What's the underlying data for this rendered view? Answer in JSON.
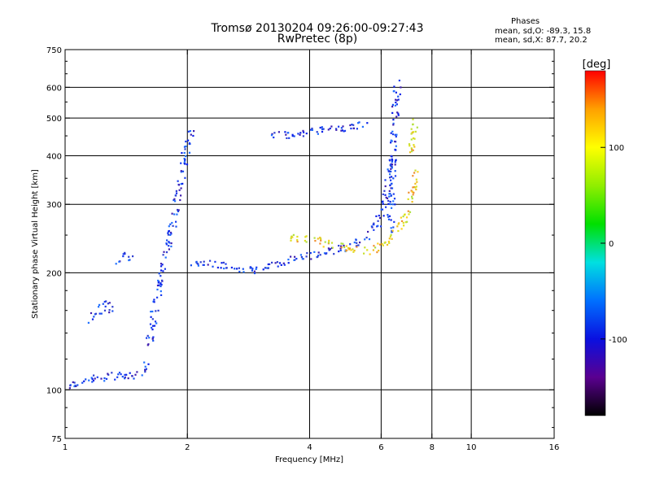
{
  "header": {
    "title": "Tromsø 20130204 09:26:00-09:27:43",
    "subtitle": "RwPretec (8p)"
  },
  "stats": {
    "title": "Phases",
    "line1": "mean, sd,O: -89.3, 15.8",
    "line2": "mean, sd,X:  87.7, 20.2"
  },
  "chart_data": {
    "type": "scatter",
    "title": "Tromsø 20130204 09:26:00-09:27:43",
    "subtitle": "RwPretec (8p)",
    "xlabel": "Frequency [MHz]",
    "ylabel": "Stationary phase Virtual Height [km]",
    "xscale": "log",
    "yscale": "log",
    "xlim": [
      1,
      16
    ],
    "ylim": [
      75,
      750
    ],
    "x_ticks": [
      1,
      2,
      4,
      6,
      8,
      10,
      16
    ],
    "y_ticks": [
      75,
      100,
      200,
      300,
      400,
      500,
      600,
      750
    ],
    "x_gridlines": [
      2,
      4,
      6,
      8,
      10
    ],
    "y_gridlines": [
      100,
      200,
      300,
      400,
      500,
      600
    ],
    "colorbar": {
      "label": "[deg]",
      "range": [
        -180,
        180
      ],
      "ticks": [
        -100,
        0,
        100
      ],
      "colors": [
        "#000000",
        "#5a0090",
        "#0a10e0",
        "#0070ff",
        "#00e0e0",
        "#00e000",
        "#90ee00",
        "#ffff00",
        "#ffa000",
        "#ff0000"
      ]
    },
    "series": [
      {
        "name": "O-mode",
        "mean_phase": -89.3,
        "sd_phase": 15.8,
        "color": "#1a3cf0",
        "segments": [
          {
            "x": [
              1.0,
              1.05,
              1.1,
              1.2,
              1.3,
              1.45,
              1.55,
              1.6
            ],
            "y": [
              103,
              104,
              106,
              108,
              109,
              109,
              111,
              118
            ]
          },
          {
            "x": [
              1.6,
              1.65,
              1.7,
              1.75,
              1.8,
              1.85,
              1.9,
              1.95,
              2.0,
              2.05
            ],
            "y": [
              130,
              160,
              190,
              215,
              240,
              280,
              330,
              390,
              440,
              470
            ]
          },
          {
            "x": [
              2.05,
              2.3,
              2.6,
              2.9,
              3.2,
              3.6,
              4.0,
              4.5,
              5.0,
              5.5,
              5.8,
              6.0,
              6.2,
              6.4
            ],
            "y": [
              210,
              212,
              206,
              204,
              210,
              218,
              222,
              228,
              235,
              250,
              265,
              285,
              330,
              400
            ]
          },
          {
            "x": [
              6.3,
              6.35,
              6.4,
              6.45,
              6.5,
              6.55
            ],
            "y": [
              250,
              330,
              420,
              500,
              560,
              620
            ]
          },
          {
            "x": [
              3.2,
              3.6,
              4.0,
              4.5,
              5.0,
              5.5
            ],
            "y": [
              452,
              456,
              462,
              470,
              478,
              488
            ]
          },
          {
            "x": [
              1.15,
              1.2,
              1.25,
              1.3
            ],
            "y": [
              150,
              160,
              168,
              156
            ]
          },
          {
            "x": [
              1.32,
              1.38,
              1.45
            ],
            "y": [
              212,
              222,
              218
            ]
          }
        ]
      },
      {
        "name": "X-mode",
        "mean_phase": 87.7,
        "sd_phase": 20.2,
        "color": "#d8e020",
        "segments": [
          {
            "x": [
              3.5,
              4.0,
              4.5,
              5.0,
              5.5,
              6.0,
              6.4,
              6.8,
              7.1,
              7.3
            ],
            "y": [
              248,
              245,
              238,
              232,
              228,
              235,
              250,
              275,
              320,
              380
            ]
          },
          {
            "x": [
              6.9,
              7.1,
              7.2,
              7.3
            ],
            "y": [
              400,
              430,
              470,
              500
            ]
          }
        ]
      }
    ]
  }
}
